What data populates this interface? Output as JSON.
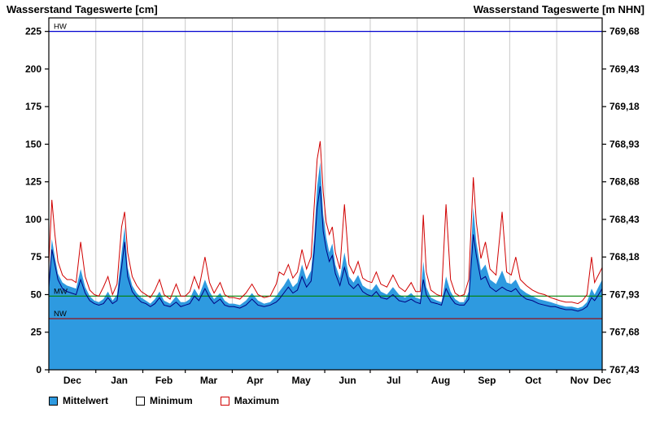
{
  "header": {
    "title_left": "Wasserstand Tageswerte [cm]",
    "title_right": "Wasserstand Tageswerte [m NHN]"
  },
  "legend": {
    "items": [
      {
        "label": "Mittelwert",
        "fill": "#2E9AE0",
        "border": "#000000"
      },
      {
        "label": "Minimum",
        "fill": "#FFFFFF",
        "border": "#000000"
      },
      {
        "label": "Maximum",
        "fill": "#FFFFFF",
        "border": "#D00000"
      }
    ]
  },
  "chart_data": {
    "type": "area",
    "title": "Wasserstand Tageswerte",
    "xlabel": "",
    "ylabel_left": "Wasserstand Tageswerte [cm]",
    "ylabel_right": "Wasserstand Tageswerte [m NHN]",
    "x_unit": "days from 1 Dec",
    "x_range": [
      0,
      365
    ],
    "ylim_cm": [
      0,
      234
    ],
    "grid_color": "#C8C8C8",
    "left_ticks_cm": [
      0,
      25,
      50,
      75,
      100,
      125,
      150,
      175,
      200,
      225
    ],
    "right_tick_labels": [
      "767,43",
      "767,68",
      "767,93",
      "768,18",
      "768,43",
      "768,68",
      "768,93",
      "769,18",
      "769,43",
      "769,68"
    ],
    "month_boundaries_day": [
      0,
      31,
      62,
      90,
      121,
      151,
      182,
      212,
      243,
      274,
      304,
      335,
      365
    ],
    "month_labels": [
      "Dec",
      "Jan",
      "Feb",
      "Mar",
      "Apr",
      "May",
      "Jun",
      "Jul",
      "Aug",
      "Sep",
      "Oct",
      "Nov",
      "Dec"
    ],
    "month_label_days": [
      15.5,
      46.5,
      76,
      105.5,
      136,
      166.5,
      197,
      227.5,
      258.5,
      289,
      319.5,
      350,
      365
    ],
    "reference_lines": [
      {
        "name": "HW",
        "value_cm": 225,
        "color": "#0000D0"
      },
      {
        "name": "MW",
        "value_cm": 49,
        "color": "#008000"
      },
      {
        "name": "NW",
        "value_cm": 34,
        "color": "#A00000"
      }
    ],
    "x": [
      0,
      2,
      4,
      6,
      9,
      12,
      15,
      18,
      21,
      24,
      27,
      30,
      33,
      36,
      39,
      42,
      45,
      48,
      50,
      52,
      55,
      58,
      61,
      64,
      67,
      70,
      73,
      76,
      80,
      84,
      87,
      90,
      93,
      96,
      99,
      103,
      106,
      109,
      113,
      116,
      119,
      122,
      126,
      130,
      134,
      138,
      142,
      146,
      150,
      152,
      155,
      158,
      161,
      164,
      167,
      170,
      173,
      175,
      177,
      179,
      181,
      183,
      185,
      187,
      189,
      192,
      195,
      198,
      201,
      204,
      207,
      210,
      213,
      216,
      219,
      223,
      227,
      231,
      235,
      239,
      242,
      245,
      247,
      249,
      252,
      256,
      259,
      262,
      265,
      268,
      271,
      274,
      277,
      280,
      282,
      285,
      288,
      291,
      295,
      299,
      302,
      305,
      308,
      311,
      315,
      319,
      323,
      327,
      331,
      334,
      337,
      341,
      345,
      349,
      352,
      355,
      358,
      360,
      362,
      365
    ],
    "series": [
      {
        "name": "Mittelwert",
        "style": "area",
        "color": "#2E9AE0",
        "values": [
          60,
          87,
          75,
          64,
          58,
          56,
          55,
          54,
          67,
          55,
          49,
          46,
          45,
          47,
          52,
          46,
          50,
          78,
          95,
          68,
          56,
          51,
          48,
          46,
          44,
          47,
          52,
          46,
          44,
          49,
          45,
          45,
          47,
          54,
          49,
          60,
          52,
          47,
          51,
          46,
          44,
          44,
          43,
          46,
          51,
          46,
          44,
          45,
          49,
          52,
          56,
          61,
          55,
          58,
          70,
          60,
          66,
          88,
          122,
          138,
          103,
          88,
          78,
          84,
          70,
          61,
          78,
          62,
          58,
          63,
          56,
          54,
          53,
          57,
          52,
          50,
          55,
          50,
          48,
          51,
          48,
          47,
          72,
          55,
          48,
          46,
          45,
          62,
          52,
          47,
          45,
          45,
          52,
          108,
          85,
          66,
          70,
          60,
          57,
          66,
          58,
          57,
          60,
          54,
          51,
          49,
          47,
          46,
          45,
          44,
          43,
          42,
          42,
          41,
          42,
          45,
          54,
          50,
          54,
          60
        ]
      },
      {
        "name": "Minimum",
        "style": "line",
        "color": "#000080",
        "values": [
          55,
          80,
          70,
          60,
          54,
          52,
          51,
          50,
          60,
          51,
          46,
          44,
          43,
          44,
          48,
          44,
          46,
          68,
          85,
          62,
          52,
          48,
          45,
          44,
          42,
          44,
          48,
          43,
          42,
          45,
          42,
          43,
          44,
          49,
          46,
          54,
          48,
          44,
          47,
          43,
          42,
          42,
          41,
          43,
          47,
          43,
          42,
          43,
          45,
          47,
          51,
          55,
          51,
          53,
          62,
          55,
          59,
          78,
          108,
          122,
          92,
          80,
          72,
          76,
          64,
          56,
          68,
          57,
          54,
          57,
          52,
          50,
          49,
          52,
          48,
          47,
          50,
          46,
          45,
          47,
          45,
          44,
          60,
          50,
          45,
          44,
          43,
          54,
          48,
          44,
          43,
          43,
          47,
          90,
          76,
          60,
          62,
          55,
          52,
          55,
          53,
          52,
          54,
          50,
          47,
          46,
          44,
          43,
          42,
          42,
          41,
          40,
          40,
          39,
          40,
          42,
          48,
          46,
          49,
          54
        ]
      },
      {
        "name": "Maximum",
        "style": "line",
        "color": "#D00000",
        "values": [
          70,
          113,
          90,
          72,
          63,
          60,
          60,
          58,
          85,
          62,
          53,
          50,
          49,
          55,
          62,
          50,
          57,
          95,
          105,
          78,
          62,
          56,
          52,
          50,
          48,
          53,
          60,
          50,
          47,
          57,
          49,
          49,
          52,
          62,
          54,
          75,
          58,
          51,
          58,
          50,
          48,
          48,
          47,
          51,
          57,
          50,
          48,
          49,
          57,
          65,
          63,
          70,
          61,
          65,
          80,
          67,
          75,
          108,
          140,
          152,
          118,
          98,
          90,
          95,
          78,
          67,
          110,
          70,
          64,
          72,
          61,
          59,
          58,
          65,
          57,
          55,
          63,
          55,
          52,
          58,
          52,
          52,
          103,
          65,
          53,
          50,
          49,
          110,
          60,
          51,
          49,
          50,
          60,
          128,
          98,
          74,
          85,
          67,
          63,
          105,
          65,
          63,
          75,
          60,
          56,
          53,
          51,
          50,
          48,
          47,
          46,
          45,
          45,
          44,
          46,
          50,
          75,
          58,
          62,
          68
        ]
      }
    ]
  }
}
